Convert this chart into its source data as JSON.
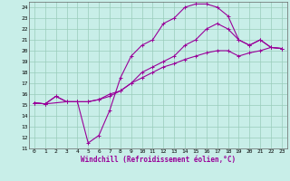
{
  "xlabel": "Windchill (Refroidissement éolien,°C)",
  "bg_color": "#c8eee8",
  "grid_color": "#99ccbb",
  "line_color": "#990099",
  "xlim": [
    -0.5,
    23.5
  ],
  "ylim": [
    11,
    24.5
  ],
  "xticks": [
    0,
    1,
    2,
    3,
    4,
    5,
    6,
    7,
    8,
    9,
    10,
    11,
    12,
    13,
    14,
    15,
    16,
    17,
    18,
    19,
    20,
    21,
    22,
    23
  ],
  "yticks": [
    11,
    12,
    13,
    14,
    15,
    16,
    17,
    18,
    19,
    20,
    21,
    22,
    23,
    24
  ],
  "line1_x": [
    0,
    1,
    2,
    3,
    4,
    5,
    6,
    7,
    8,
    9,
    10,
    11,
    12,
    13,
    14,
    15,
    16,
    17,
    18,
    19,
    20,
    21,
    22,
    23
  ],
  "line1_y": [
    15.2,
    15.1,
    15.8,
    15.3,
    15.3,
    11.5,
    12.2,
    14.5,
    17.5,
    19.5,
    20.5,
    21.0,
    22.5,
    23.0,
    24.0,
    24.3,
    24.3,
    24.0,
    23.2,
    21.0,
    20.5,
    21.0,
    20.3,
    20.2
  ],
  "line2_x": [
    0,
    1,
    3,
    4,
    5,
    6,
    7,
    8,
    9,
    10,
    11,
    12,
    13,
    14,
    15,
    16,
    17,
    18,
    19,
    20,
    21,
    22,
    23
  ],
  "line2_y": [
    15.2,
    15.1,
    15.3,
    15.3,
    15.3,
    15.5,
    16.0,
    16.3,
    17.0,
    18.0,
    18.5,
    19.0,
    19.5,
    20.5,
    21.0,
    22.0,
    22.5,
    22.0,
    21.0,
    20.5,
    21.0,
    20.3,
    20.2
  ],
  "line3_x": [
    0,
    1,
    2,
    3,
    4,
    5,
    6,
    7,
    8,
    9,
    10,
    11,
    12,
    13,
    14,
    15,
    16,
    17,
    18,
    19,
    20,
    21,
    22,
    23
  ],
  "line3_y": [
    15.2,
    15.1,
    15.8,
    15.3,
    15.3,
    15.3,
    15.5,
    15.8,
    16.3,
    17.0,
    17.5,
    18.0,
    18.5,
    18.8,
    19.2,
    19.5,
    19.8,
    20.0,
    20.0,
    19.5,
    19.8,
    20.0,
    20.3,
    20.2
  ]
}
